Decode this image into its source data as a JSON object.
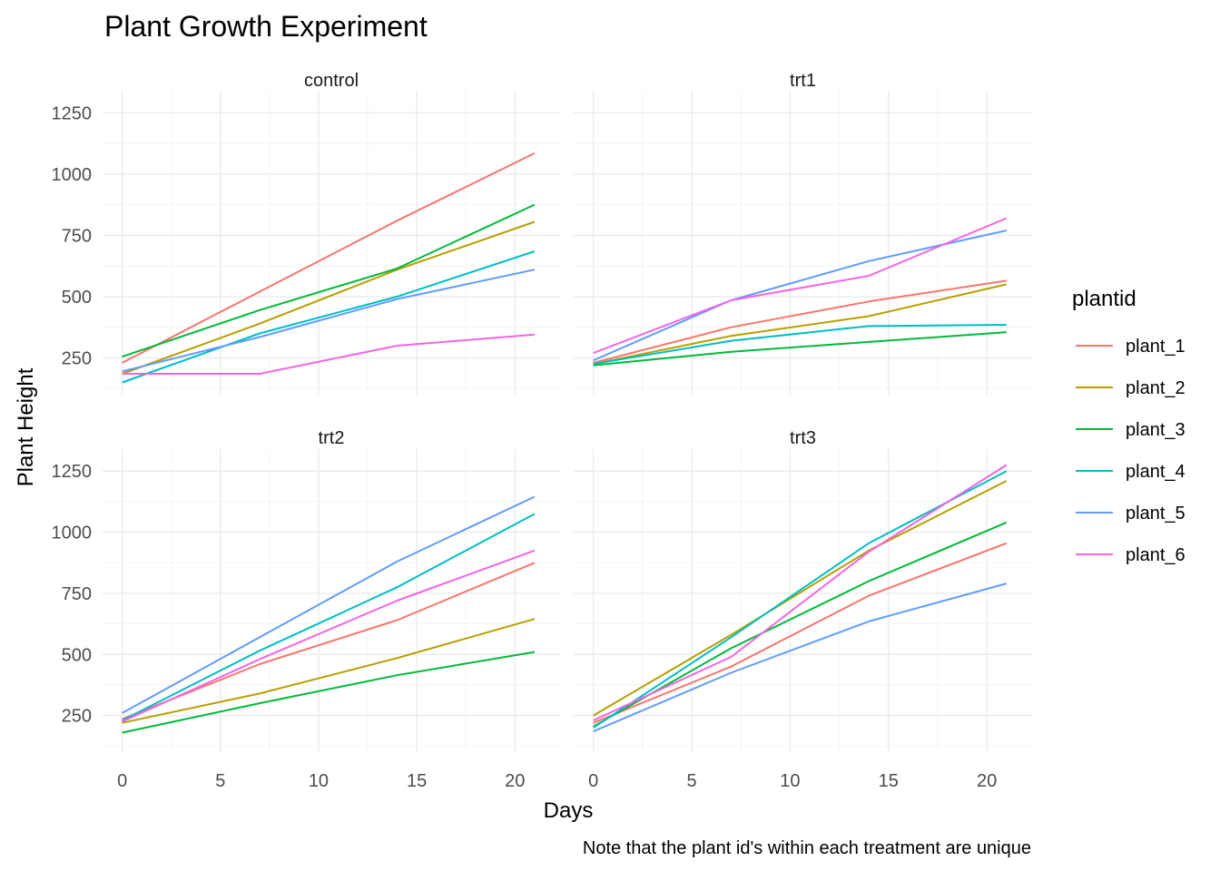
{
  "chart_data": {
    "type": "line",
    "title": "Plant Growth Experiment",
    "xlabel": "Days",
    "ylabel": "Plant Height",
    "caption": "Note that the plant id's within each treatment are unique",
    "xlim": [
      -1,
      22.3
    ],
    "ylim": [
      100,
      1340
    ],
    "x_ticks": [
      0,
      5,
      10,
      15,
      20
    ],
    "y_ticks": [
      250,
      500,
      750,
      1000,
      1250
    ],
    "grid": true,
    "legend": {
      "title": "plantid",
      "position": "right",
      "entries": [
        {
          "name": "plant_1",
          "color": "#F8766D"
        },
        {
          "name": "plant_2",
          "color": "#B79F00"
        },
        {
          "name": "plant_3",
          "color": "#00BA38"
        },
        {
          "name": "plant_4",
          "color": "#00BFC4"
        },
        {
          "name": "plant_5",
          "color": "#619CFF"
        },
        {
          "name": "plant_6",
          "color": "#F564E3"
        }
      ]
    },
    "x": [
      0,
      7,
      14,
      21
    ],
    "facets": [
      {
        "name": "control",
        "series": [
          {
            "name": "plant_1",
            "values": [
              230,
              520,
              810,
              1085
            ]
          },
          {
            "name": "plant_2",
            "values": [
              185,
              390,
              610,
              805
            ]
          },
          {
            "name": "plant_3",
            "values": [
              255,
              445,
              615,
              875
            ]
          },
          {
            "name": "plant_4",
            "values": [
              150,
              350,
              500,
              685
            ]
          },
          {
            "name": "plant_5",
            "values": [
              195,
              335,
              490,
              610
            ]
          },
          {
            "name": "plant_6",
            "values": [
              185,
              185,
              300,
              345
            ]
          }
        ]
      },
      {
        "name": "trt1",
        "series": [
          {
            "name": "plant_1",
            "values": [
              230,
              375,
              480,
              565
            ]
          },
          {
            "name": "plant_2",
            "values": [
              225,
              340,
              420,
              550
            ]
          },
          {
            "name": "plant_3",
            "values": [
              220,
              275,
              315,
              355
            ]
          },
          {
            "name": "plant_4",
            "values": [
              225,
              320,
              380,
              385
            ]
          },
          {
            "name": "plant_5",
            "values": [
              240,
              485,
              645,
              770
            ]
          },
          {
            "name": "plant_6",
            "values": [
              270,
              485,
              585,
              820
            ]
          }
        ]
      },
      {
        "name": "trt2",
        "series": [
          {
            "name": "plant_1",
            "values": [
              235,
              460,
              640,
              875
            ]
          },
          {
            "name": "plant_2",
            "values": [
              220,
              340,
              485,
              645
            ]
          },
          {
            "name": "plant_3",
            "values": [
              180,
              300,
              415,
              510
            ]
          },
          {
            "name": "plant_4",
            "values": [
              230,
              515,
              775,
              1075
            ]
          },
          {
            "name": "plant_5",
            "values": [
              260,
              570,
              880,
              1145
            ]
          },
          {
            "name": "plant_6",
            "values": [
              225,
              480,
              720,
              925
            ]
          }
        ]
      },
      {
        "name": "trt3",
        "series": [
          {
            "name": "plant_1",
            "values": [
              220,
              450,
              740,
              955
            ]
          },
          {
            "name": "plant_2",
            "values": [
              250,
              580,
              925,
              1210
            ]
          },
          {
            "name": "plant_3",
            "values": [
              205,
              525,
              800,
              1040
            ]
          },
          {
            "name": "plant_4",
            "values": [
              200,
              570,
              955,
              1250
            ]
          },
          {
            "name": "plant_5",
            "values": [
              185,
              425,
              635,
              790
            ]
          },
          {
            "name": "plant_6",
            "values": [
              230,
              490,
              920,
              1275
            ]
          }
        ]
      }
    ]
  }
}
